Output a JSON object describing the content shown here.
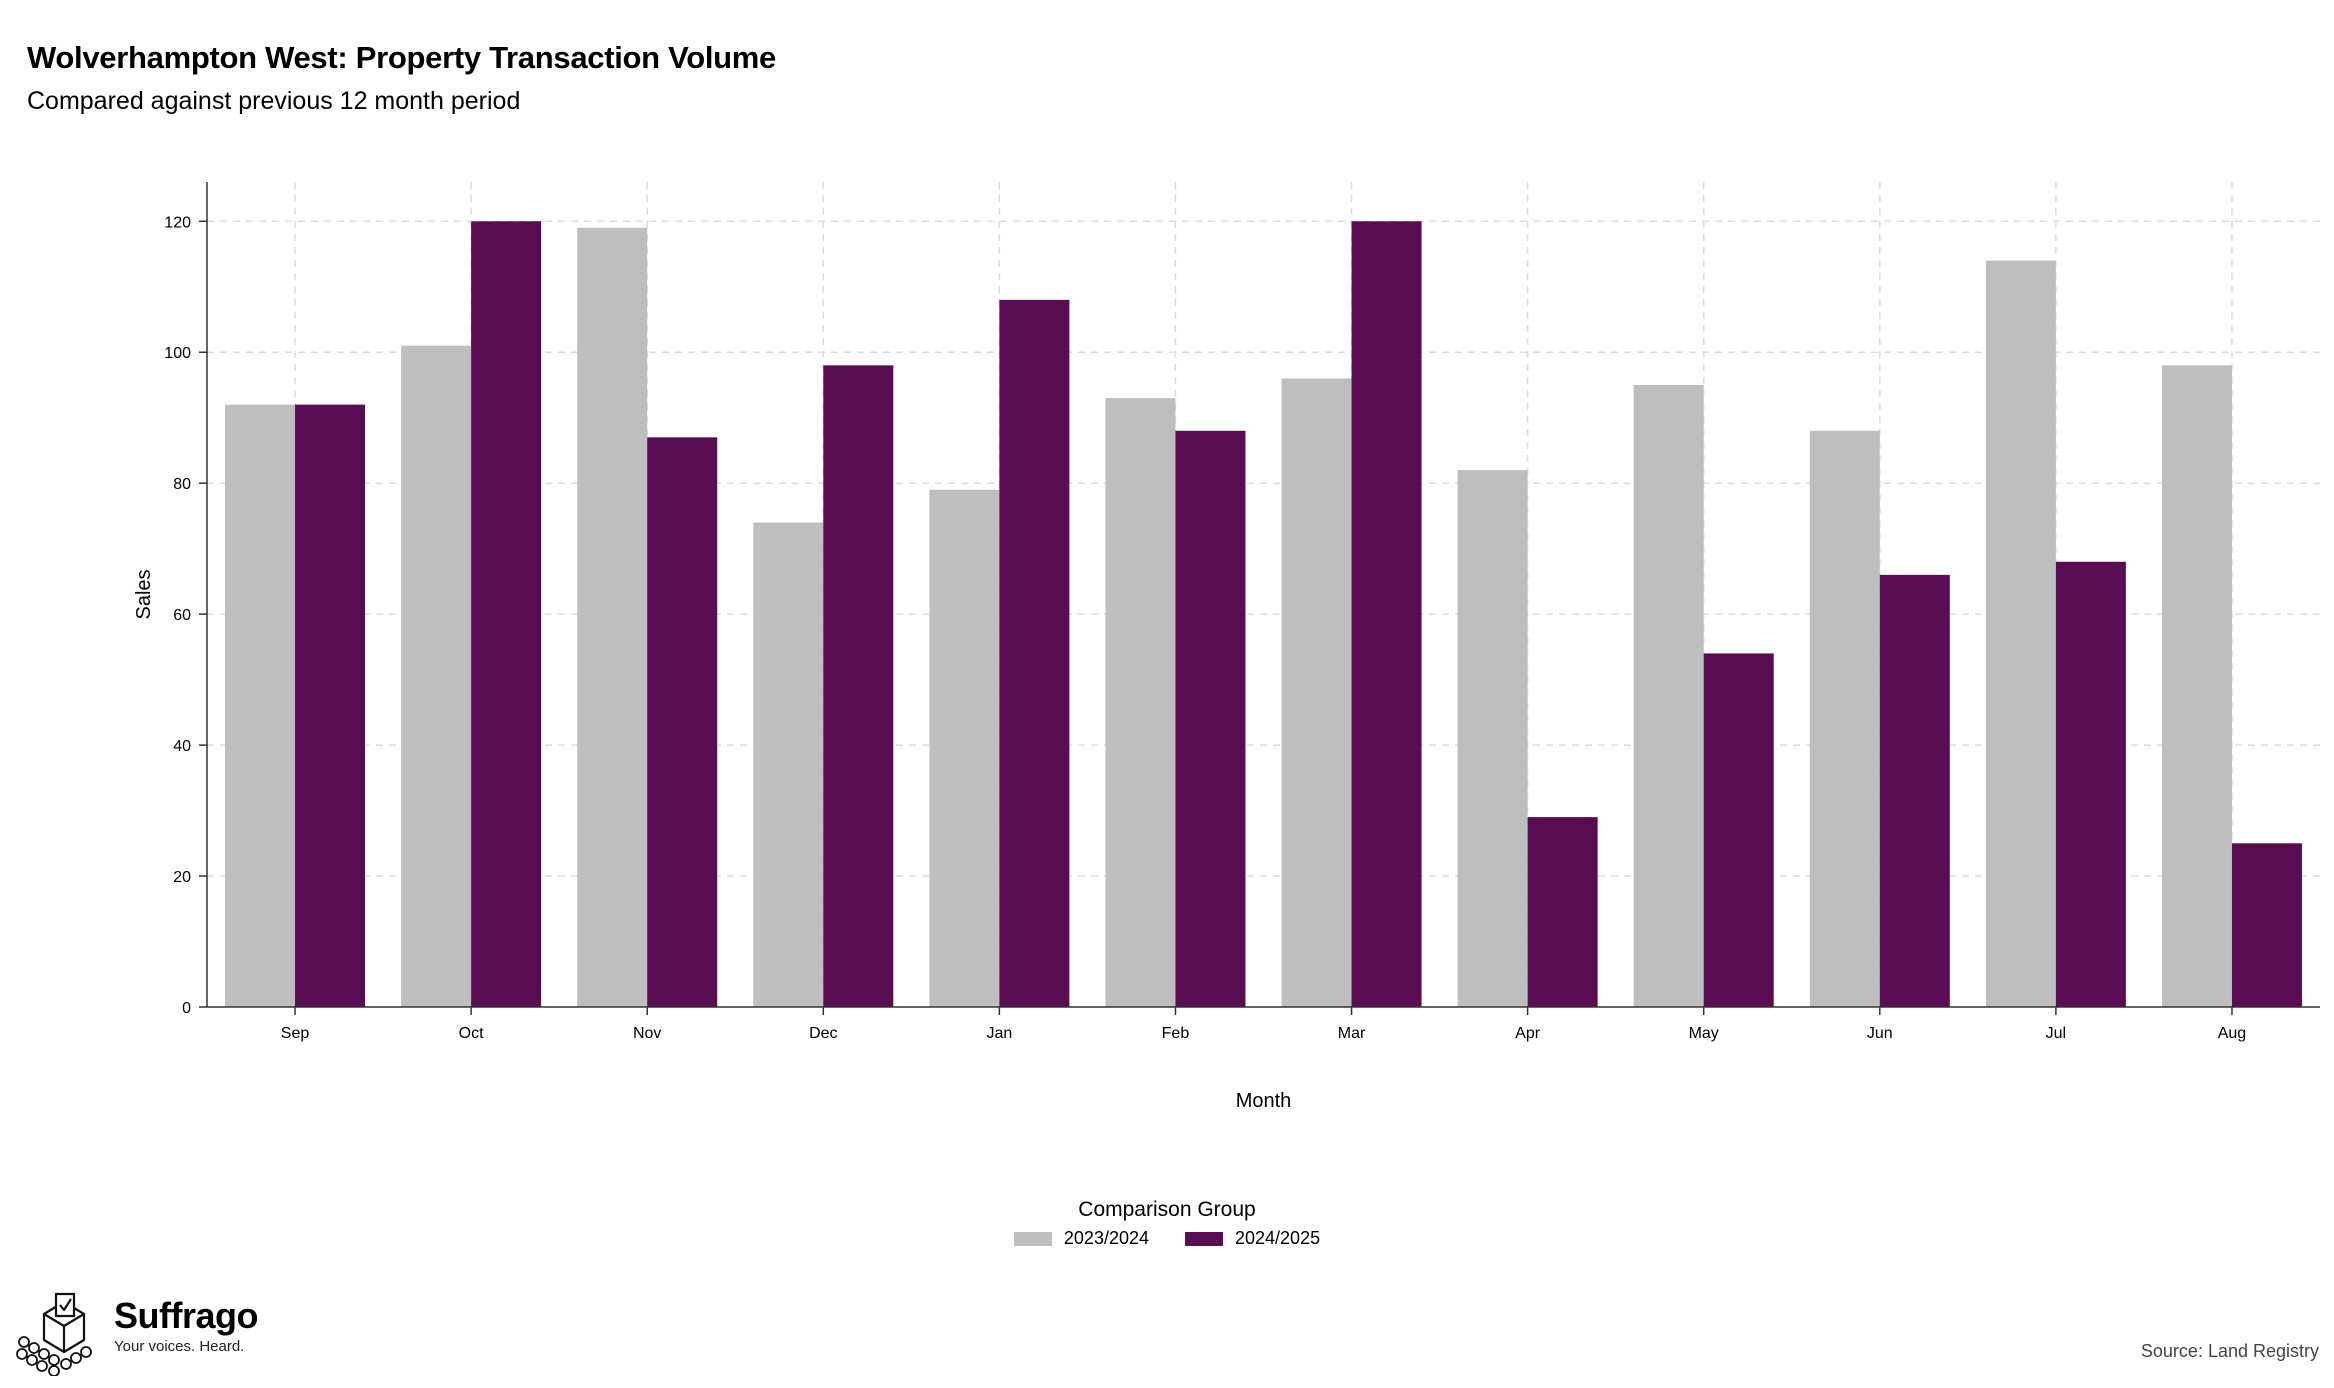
{
  "header": {
    "title": "Wolverhampton West: Property Transaction Volume",
    "subtitle": "Compared against previous 12 month period"
  },
  "footer": {
    "logo_name": "Suffrago",
    "logo_tagline": "Your voices. Heard.",
    "source": "Source: Land Registry"
  },
  "chart_data": {
    "type": "bar",
    "title": "Wolverhampton West: Property Transaction Volume",
    "subtitle": "Compared against previous 12 month period",
    "xlabel": "Month",
    "ylabel": "Sales",
    "ylim": [
      0,
      126
    ],
    "yticks": [
      0,
      20,
      40,
      60,
      80,
      100,
      120
    ],
    "grid": true,
    "legend_title": "Comparison Group",
    "legend_position": "bottom",
    "categories": [
      "Sep",
      "Oct",
      "Nov",
      "Dec",
      "Jan",
      "Feb",
      "Mar",
      "Apr",
      "May",
      "Jun",
      "Jul",
      "Aug"
    ],
    "series": [
      {
        "name": "2023/2024",
        "color": "#bebebe",
        "values": [
          92,
          101,
          119,
          74,
          79,
          93,
          96,
          82,
          95,
          88,
          114,
          98
        ]
      },
      {
        "name": "2024/2025",
        "color": "#580c52",
        "values": [
          92,
          120,
          87,
          98,
          108,
          88,
          120,
          29,
          54,
          66,
          68,
          25
        ]
      }
    ]
  }
}
